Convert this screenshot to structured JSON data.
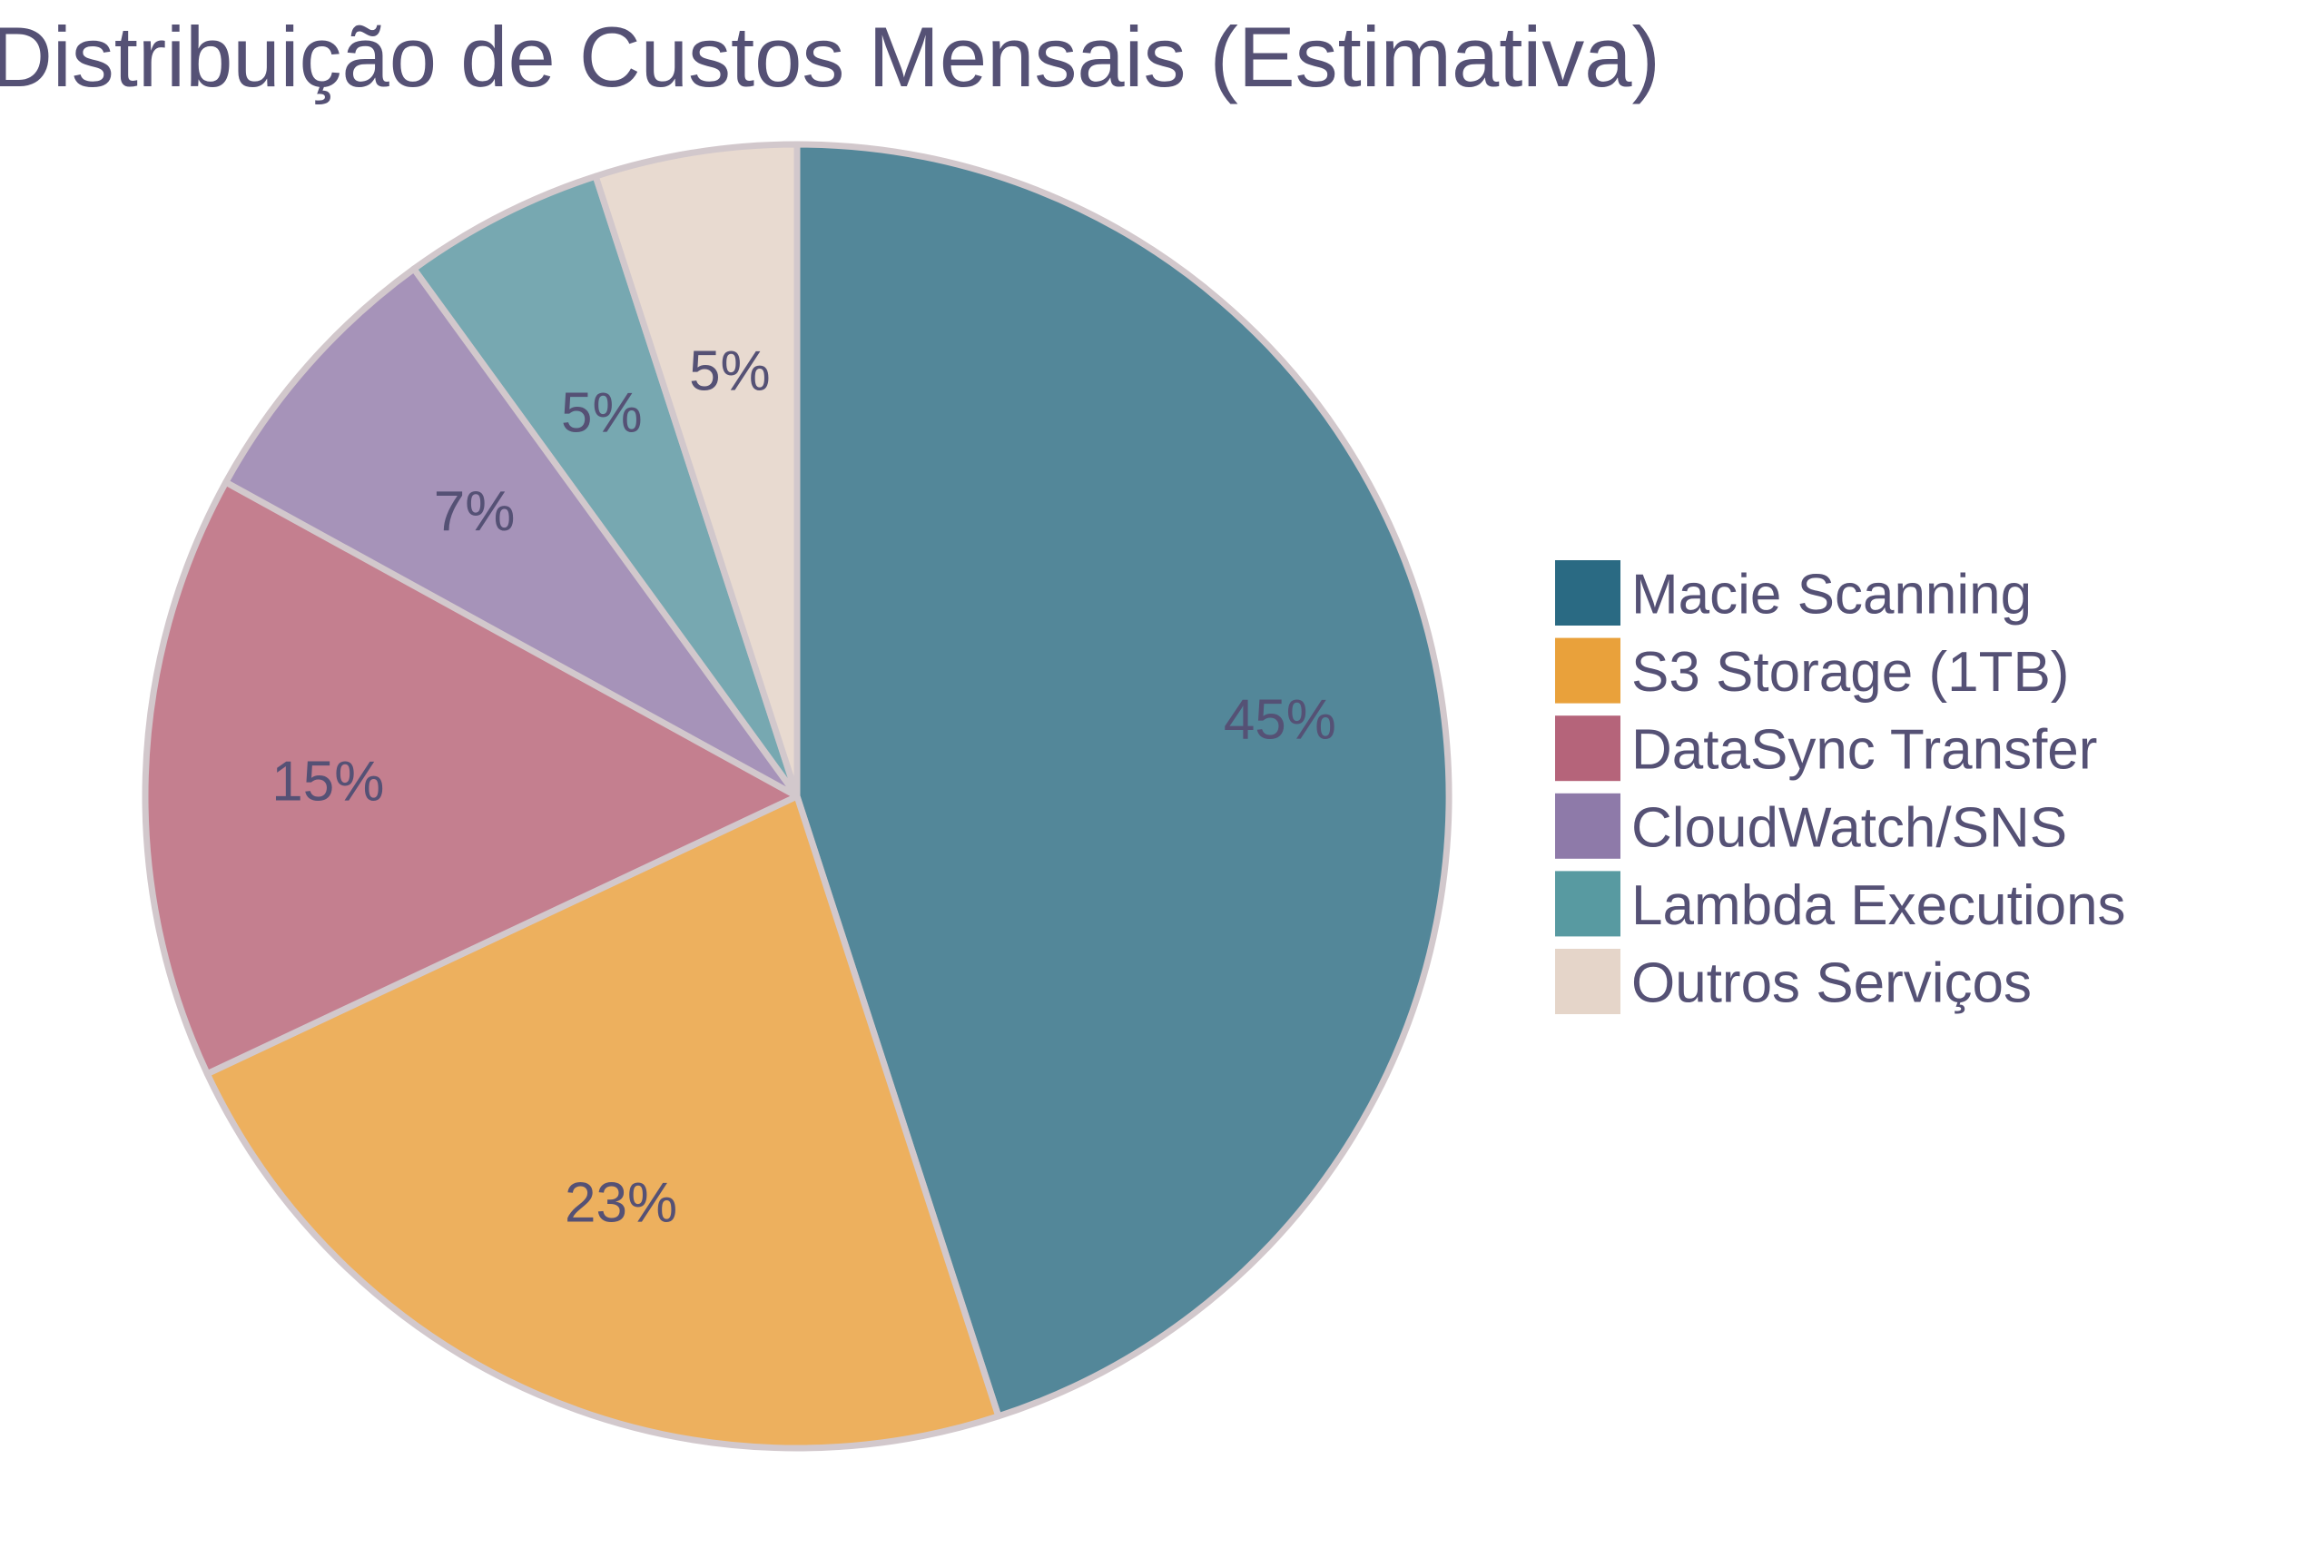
{
  "chart_data": {
    "type": "pie",
    "title": "Distribuição de Custos Mensais (Estimativa)",
    "categories": [
      "Macie Scanning",
      "S3 Storage (1TB)",
      "DataSync Transfer",
      "CloudWatch/SNS",
      "Lambda Executions",
      "Outros Serviços"
    ],
    "values": [
      45,
      23,
      15,
      7,
      5,
      5
    ],
    "value_labels": [
      "45%",
      "23%",
      "15%",
      "7%",
      "5%",
      "5%"
    ],
    "legend_colors": [
      "#2a6a83",
      "#e9a13b",
      "#b5647a",
      "#8e7aa9",
      "#589aa1",
      "#e5d5c9"
    ],
    "slice_colors": [
      "#538799",
      "#edb05e",
      "#c47f8f",
      "#a693b9",
      "#77a8b1",
      "#e8dad0"
    ],
    "slice_border_color": "#d2c8cc",
    "start_angle_deg": 0,
    "direction": "clockwise",
    "legend_placement": "right"
  }
}
